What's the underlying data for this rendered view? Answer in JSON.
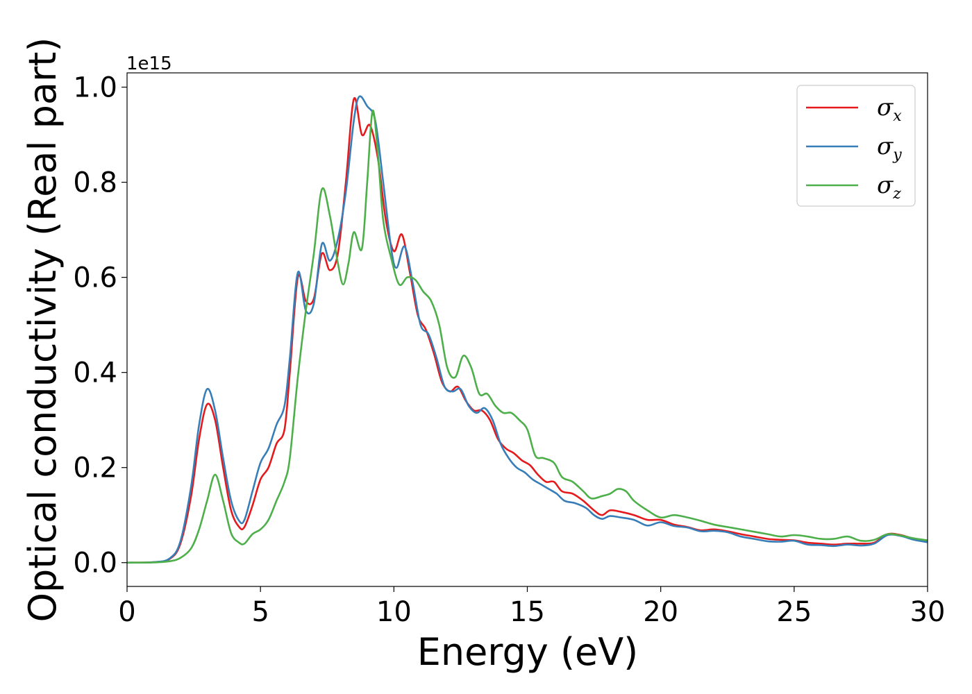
{
  "chart_data": {
    "type": "line",
    "title": "",
    "xlabel": "Energy (eV)",
    "ylabel": "Optical conductivity (Real part)",
    "y_offset_label": "1e15",
    "xlim": [
      0,
      30
    ],
    "ylim": [
      -0.05,
      1.03
    ],
    "xticks": [
      0,
      5,
      10,
      15,
      20,
      25,
      30
    ],
    "yticks": [
      0.0,
      0.2,
      0.4,
      0.6,
      0.8,
      1.0
    ],
    "xtick_labels": [
      "0",
      "5",
      "10",
      "15",
      "20",
      "25",
      "30"
    ],
    "ytick_labels": [
      "0.0",
      "0.2",
      "0.4",
      "0.6",
      "0.8",
      "1.0"
    ],
    "grid": false,
    "legend_position": "top-right",
    "series": [
      {
        "name": "σx",
        "symbol": "σ",
        "subscript": "x",
        "color": "#e41a1c",
        "points": [
          [
            0,
            0
          ],
          [
            1.0,
            0.001
          ],
          [
            1.6,
            0.008
          ],
          [
            2.0,
            0.04
          ],
          [
            2.4,
            0.14
          ],
          [
            2.7,
            0.26
          ],
          [
            3.0,
            0.333
          ],
          [
            3.3,
            0.3
          ],
          [
            3.6,
            0.2
          ],
          [
            3.9,
            0.11
          ],
          [
            4.2,
            0.075
          ],
          [
            4.4,
            0.075
          ],
          [
            4.7,
            0.12
          ],
          [
            5.0,
            0.175
          ],
          [
            5.3,
            0.2
          ],
          [
            5.6,
            0.25
          ],
          [
            5.9,
            0.28
          ],
          [
            6.1,
            0.4
          ],
          [
            6.4,
            0.6
          ],
          [
            6.7,
            0.55
          ],
          [
            7.0,
            0.555
          ],
          [
            7.3,
            0.65
          ],
          [
            7.6,
            0.615
          ],
          [
            7.9,
            0.65
          ],
          [
            8.2,
            0.8
          ],
          [
            8.5,
            0.975
          ],
          [
            8.8,
            0.9
          ],
          [
            9.1,
            0.92
          ],
          [
            9.4,
            0.85
          ],
          [
            9.7,
            0.72
          ],
          [
            10.0,
            0.655
          ],
          [
            10.3,
            0.69
          ],
          [
            10.6,
            0.61
          ],
          [
            10.9,
            0.52
          ],
          [
            11.2,
            0.49
          ],
          [
            11.5,
            0.44
          ],
          [
            11.8,
            0.38
          ],
          [
            12.1,
            0.36
          ],
          [
            12.4,
            0.37
          ],
          [
            12.7,
            0.34
          ],
          [
            13.0,
            0.32
          ],
          [
            13.3,
            0.32
          ],
          [
            13.6,
            0.3
          ],
          [
            13.9,
            0.26
          ],
          [
            14.2,
            0.24
          ],
          [
            14.5,
            0.23
          ],
          [
            14.8,
            0.215
          ],
          [
            15.1,
            0.205
          ],
          [
            15.4,
            0.185
          ],
          [
            15.7,
            0.17
          ],
          [
            16.0,
            0.17
          ],
          [
            16.3,
            0.15
          ],
          [
            16.7,
            0.145
          ],
          [
            17.1,
            0.13
          ],
          [
            17.5,
            0.11
          ],
          [
            17.8,
            0.1
          ],
          [
            18.1,
            0.11
          ],
          [
            18.5,
            0.107
          ],
          [
            19.0,
            0.1
          ],
          [
            19.5,
            0.09
          ],
          [
            20.0,
            0.09
          ],
          [
            20.5,
            0.08
          ],
          [
            21.0,
            0.075
          ],
          [
            21.5,
            0.068
          ],
          [
            22.0,
            0.07
          ],
          [
            22.5,
            0.066
          ],
          [
            23.0,
            0.06
          ],
          [
            23.5,
            0.055
          ],
          [
            24.0,
            0.05
          ],
          [
            24.5,
            0.048
          ],
          [
            25.0,
            0.047
          ],
          [
            25.5,
            0.042
          ],
          [
            26.0,
            0.04
          ],
          [
            26.5,
            0.038
          ],
          [
            27.0,
            0.04
          ],
          [
            27.5,
            0.04
          ],
          [
            28.0,
            0.042
          ],
          [
            28.5,
            0.06
          ],
          [
            29.0,
            0.058
          ],
          [
            29.5,
            0.05
          ],
          [
            30.0,
            0.046
          ]
        ]
      },
      {
        "name": "σy",
        "symbol": "σ",
        "subscript": "y",
        "color": "#377eb8",
        "points": [
          [
            0,
            0
          ],
          [
            1.0,
            0.001
          ],
          [
            1.6,
            0.009
          ],
          [
            2.0,
            0.045
          ],
          [
            2.4,
            0.16
          ],
          [
            2.7,
            0.29
          ],
          [
            3.0,
            0.365
          ],
          [
            3.3,
            0.32
          ],
          [
            3.6,
            0.22
          ],
          [
            3.9,
            0.13
          ],
          [
            4.2,
            0.088
          ],
          [
            4.4,
            0.09
          ],
          [
            4.7,
            0.15
          ],
          [
            5.0,
            0.21
          ],
          [
            5.3,
            0.24
          ],
          [
            5.6,
            0.29
          ],
          [
            5.9,
            0.33
          ],
          [
            6.1,
            0.43
          ],
          [
            6.4,
            0.61
          ],
          [
            6.7,
            0.53
          ],
          [
            7.0,
            0.545
          ],
          [
            7.3,
            0.67
          ],
          [
            7.6,
            0.635
          ],
          [
            7.9,
            0.68
          ],
          [
            8.2,
            0.78
          ],
          [
            8.5,
            0.93
          ],
          [
            8.7,
            0.98
          ],
          [
            9.0,
            0.96
          ],
          [
            9.3,
            0.93
          ],
          [
            9.6,
            0.8
          ],
          [
            9.9,
            0.66
          ],
          [
            10.1,
            0.62
          ],
          [
            10.4,
            0.665
          ],
          [
            10.7,
            0.59
          ],
          [
            11.0,
            0.5
          ],
          [
            11.3,
            0.48
          ],
          [
            11.6,
            0.43
          ],
          [
            11.9,
            0.37
          ],
          [
            12.2,
            0.36
          ],
          [
            12.5,
            0.365
          ],
          [
            12.8,
            0.33
          ],
          [
            13.1,
            0.315
          ],
          [
            13.4,
            0.325
          ],
          [
            13.7,
            0.3
          ],
          [
            14.0,
            0.25
          ],
          [
            14.3,
            0.22
          ],
          [
            14.6,
            0.2
          ],
          [
            14.9,
            0.19
          ],
          [
            15.2,
            0.175
          ],
          [
            15.5,
            0.165
          ],
          [
            15.8,
            0.155
          ],
          [
            16.1,
            0.145
          ],
          [
            16.4,
            0.13
          ],
          [
            16.8,
            0.125
          ],
          [
            17.2,
            0.115
          ],
          [
            17.5,
            0.1
          ],
          [
            17.8,
            0.092
          ],
          [
            18.1,
            0.098
          ],
          [
            18.5,
            0.095
          ],
          [
            19.0,
            0.09
          ],
          [
            19.5,
            0.078
          ],
          [
            20.0,
            0.085
          ],
          [
            20.5,
            0.077
          ],
          [
            21.0,
            0.074
          ],
          [
            21.5,
            0.066
          ],
          [
            22.0,
            0.067
          ],
          [
            22.5,
            0.064
          ],
          [
            23.0,
            0.055
          ],
          [
            23.5,
            0.05
          ],
          [
            24.0,
            0.045
          ],
          [
            24.5,
            0.044
          ],
          [
            25.0,
            0.046
          ],
          [
            25.5,
            0.038
          ],
          [
            26.0,
            0.037
          ],
          [
            26.5,
            0.035
          ],
          [
            27.0,
            0.038
          ],
          [
            27.5,
            0.036
          ],
          [
            28.0,
            0.04
          ],
          [
            28.5,
            0.058
          ],
          [
            29.0,
            0.056
          ],
          [
            29.5,
            0.048
          ],
          [
            30.0,
            0.043
          ]
        ]
      },
      {
        "name": "σz",
        "symbol": "σ",
        "subscript": "z",
        "color": "#4daf4a",
        "points": [
          [
            0,
            0
          ],
          [
            1.0,
            0.0005
          ],
          [
            1.6,
            0.003
          ],
          [
            2.0,
            0.01
          ],
          [
            2.4,
            0.03
          ],
          [
            2.7,
            0.07
          ],
          [
            3.0,
            0.13
          ],
          [
            3.3,
            0.185
          ],
          [
            3.6,
            0.13
          ],
          [
            3.9,
            0.062
          ],
          [
            4.2,
            0.042
          ],
          [
            4.4,
            0.04
          ],
          [
            4.7,
            0.06
          ],
          [
            5.0,
            0.07
          ],
          [
            5.3,
            0.09
          ],
          [
            5.6,
            0.13
          ],
          [
            5.9,
            0.17
          ],
          [
            6.1,
            0.22
          ],
          [
            6.4,
            0.39
          ],
          [
            6.7,
            0.53
          ],
          [
            7.0,
            0.65
          ],
          [
            7.3,
            0.785
          ],
          [
            7.6,
            0.73
          ],
          [
            7.9,
            0.63
          ],
          [
            8.1,
            0.585
          ],
          [
            8.3,
            0.63
          ],
          [
            8.5,
            0.695
          ],
          [
            8.8,
            0.66
          ],
          [
            9.0,
            0.8
          ],
          [
            9.2,
            0.95
          ],
          [
            9.4,
            0.86
          ],
          [
            9.6,
            0.72
          ],
          [
            9.9,
            0.64
          ],
          [
            10.2,
            0.585
          ],
          [
            10.5,
            0.6
          ],
          [
            10.8,
            0.595
          ],
          [
            11.1,
            0.57
          ],
          [
            11.4,
            0.55
          ],
          [
            11.7,
            0.5
          ],
          [
            12.0,
            0.41
          ],
          [
            12.3,
            0.39
          ],
          [
            12.6,
            0.435
          ],
          [
            12.9,
            0.41
          ],
          [
            13.2,
            0.355
          ],
          [
            13.5,
            0.355
          ],
          [
            13.8,
            0.33
          ],
          [
            14.1,
            0.315
          ],
          [
            14.4,
            0.315
          ],
          [
            14.7,
            0.3
          ],
          [
            15.0,
            0.28
          ],
          [
            15.3,
            0.225
          ],
          [
            15.6,
            0.22
          ],
          [
            16.0,
            0.21
          ],
          [
            16.3,
            0.18
          ],
          [
            16.7,
            0.17
          ],
          [
            17.1,
            0.15
          ],
          [
            17.4,
            0.135
          ],
          [
            17.8,
            0.14
          ],
          [
            18.1,
            0.145
          ],
          [
            18.4,
            0.155
          ],
          [
            18.7,
            0.15
          ],
          [
            19.0,
            0.13
          ],
          [
            19.5,
            0.11
          ],
          [
            20.0,
            0.095
          ],
          [
            20.5,
            0.1
          ],
          [
            21.0,
            0.095
          ],
          [
            21.5,
            0.088
          ],
          [
            22.0,
            0.08
          ],
          [
            22.5,
            0.075
          ],
          [
            23.0,
            0.07
          ],
          [
            23.5,
            0.065
          ],
          [
            24.0,
            0.06
          ],
          [
            24.5,
            0.055
          ],
          [
            25.0,
            0.058
          ],
          [
            25.5,
            0.055
          ],
          [
            26.0,
            0.05
          ],
          [
            26.5,
            0.05
          ],
          [
            27.0,
            0.055
          ],
          [
            27.5,
            0.046
          ],
          [
            28.0,
            0.048
          ],
          [
            28.5,
            0.06
          ],
          [
            29.0,
            0.057
          ],
          [
            29.5,
            0.051
          ],
          [
            30.0,
            0.047
          ]
        ]
      }
    ]
  }
}
